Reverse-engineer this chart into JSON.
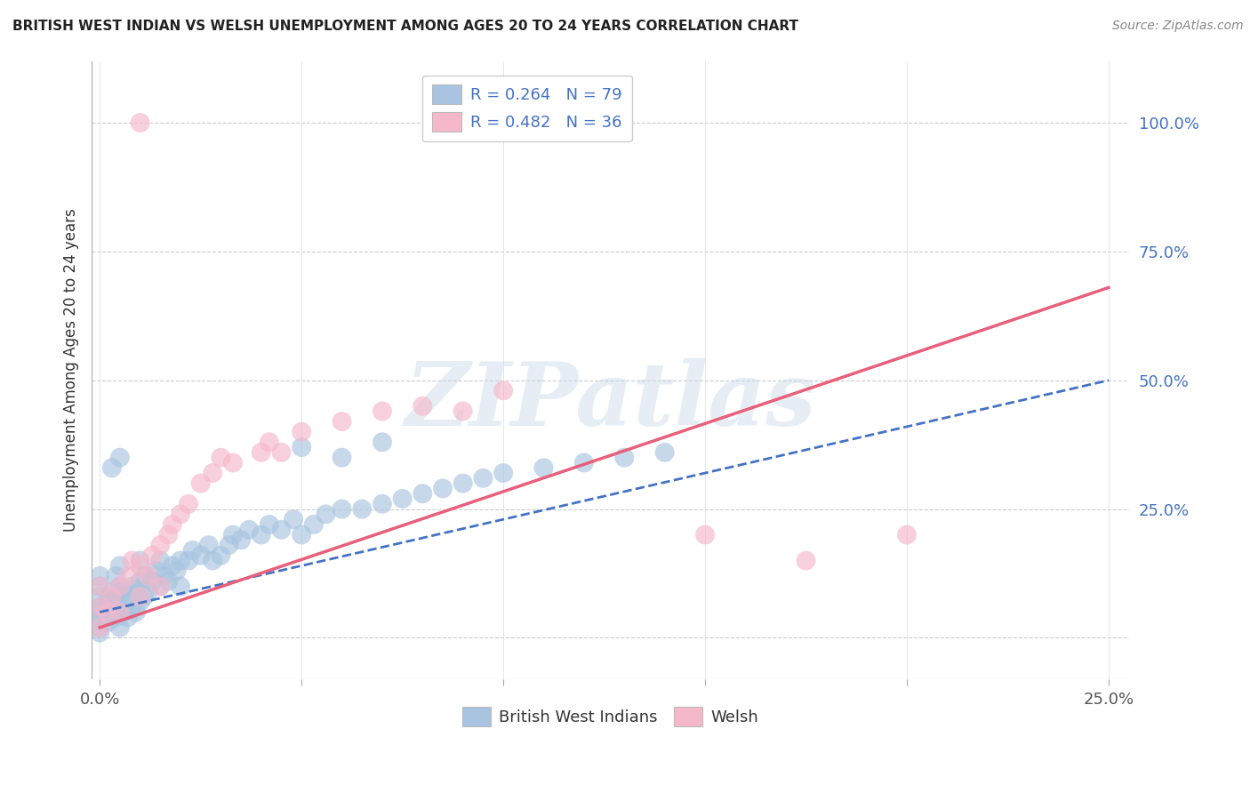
{
  "title": "BRITISH WEST INDIAN VS WELSH UNEMPLOYMENT AMONG AGES 20 TO 24 YEARS CORRELATION CHART",
  "source": "Source: ZipAtlas.com",
  "ylabel": "Unemployment Among Ages 20 to 24 years",
  "xlim": [
    -0.002,
    0.255
  ],
  "ylim": [
    -0.08,
    1.12
  ],
  "xticks": [
    0.0,
    0.05,
    0.1,
    0.15,
    0.2,
    0.25
  ],
  "xtick_labels": [
    "0.0%",
    "",
    "",
    "",
    "",
    "25.0%"
  ],
  "yticks": [
    0.0,
    0.25,
    0.5,
    0.75,
    1.0
  ],
  "ytick_labels": [
    "",
    "25.0%",
    "50.0%",
    "75.0%",
    "100.0%"
  ],
  "legend_r1": "R = 0.264   N = 79",
  "legend_r2": "R = 0.482   N = 36",
  "blue_color": "#a8c4e0",
  "pink_color": "#f5b8cb",
  "blue_line_color": "#4472c4",
  "pink_line_color": "#e8607a",
  "text_color_blue": "#4472c4",
  "text_color_dark": "#333333",
  "watermark_color": "#c8d8ea",
  "watermark": "ZIPatlas",
  "blue_scatter_x": [
    0.0,
    0.0,
    0.0,
    0.0,
    0.0,
    0.0,
    0.0,
    0.0,
    0.002,
    0.002,
    0.003,
    0.003,
    0.004,
    0.004,
    0.004,
    0.005,
    0.005,
    0.005,
    0.005,
    0.005,
    0.006,
    0.006,
    0.007,
    0.007,
    0.008,
    0.008,
    0.009,
    0.009,
    0.01,
    0.01,
    0.01,
    0.011,
    0.011,
    0.012,
    0.013,
    0.014,
    0.015,
    0.015,
    0.016,
    0.017,
    0.018,
    0.019,
    0.02,
    0.02,
    0.022,
    0.023,
    0.025,
    0.027,
    0.028,
    0.03,
    0.032,
    0.033,
    0.035,
    0.037,
    0.04,
    0.042,
    0.045,
    0.048,
    0.05,
    0.053,
    0.056,
    0.06,
    0.065,
    0.07,
    0.075,
    0.08,
    0.085,
    0.09,
    0.095,
    0.1,
    0.11,
    0.12,
    0.13,
    0.14,
    0.05,
    0.06,
    0.07,
    0.005,
    0.003
  ],
  "blue_scatter_y": [
    0.02,
    0.04,
    0.06,
    0.08,
    0.1,
    0.12,
    0.05,
    0.01,
    0.03,
    0.07,
    0.05,
    0.09,
    0.04,
    0.08,
    0.12,
    0.02,
    0.06,
    0.1,
    0.14,
    0.08,
    0.05,
    0.09,
    0.04,
    0.08,
    0.06,
    0.1,
    0.05,
    0.09,
    0.07,
    0.11,
    0.15,
    0.08,
    0.12,
    0.09,
    0.11,
    0.13,
    0.1,
    0.15,
    0.12,
    0.11,
    0.14,
    0.13,
    0.15,
    0.1,
    0.15,
    0.17,
    0.16,
    0.18,
    0.15,
    0.16,
    0.18,
    0.2,
    0.19,
    0.21,
    0.2,
    0.22,
    0.21,
    0.23,
    0.2,
    0.22,
    0.24,
    0.25,
    0.25,
    0.26,
    0.27,
    0.28,
    0.29,
    0.3,
    0.31,
    0.32,
    0.33,
    0.34,
    0.35,
    0.36,
    0.37,
    0.35,
    0.38,
    0.35,
    0.33
  ],
  "pink_scatter_x": [
    0.0,
    0.0,
    0.0,
    0.002,
    0.003,
    0.005,
    0.005,
    0.007,
    0.008,
    0.01,
    0.01,
    0.012,
    0.013,
    0.015,
    0.015,
    0.017,
    0.018,
    0.02,
    0.022,
    0.025,
    0.028,
    0.03,
    0.033,
    0.04,
    0.042,
    0.045,
    0.05,
    0.06,
    0.07,
    0.08,
    0.09,
    0.1,
    0.15,
    0.175,
    0.2,
    0.01
  ],
  "pink_scatter_y": [
    0.02,
    0.06,
    0.1,
    0.05,
    0.08,
    0.05,
    0.1,
    0.12,
    0.15,
    0.08,
    0.14,
    0.12,
    0.16,
    0.1,
    0.18,
    0.2,
    0.22,
    0.24,
    0.26,
    0.3,
    0.32,
    0.35,
    0.34,
    0.36,
    0.38,
    0.36,
    0.4,
    0.42,
    0.44,
    0.45,
    0.44,
    0.48,
    0.2,
    0.15,
    0.2,
    1.0
  ],
  "blue_trend_x": [
    0.0,
    0.25
  ],
  "blue_trend_y": [
    0.05,
    0.5
  ],
  "pink_trend_x": [
    0.0,
    0.25
  ],
  "pink_trend_y": [
    0.02,
    0.68
  ]
}
